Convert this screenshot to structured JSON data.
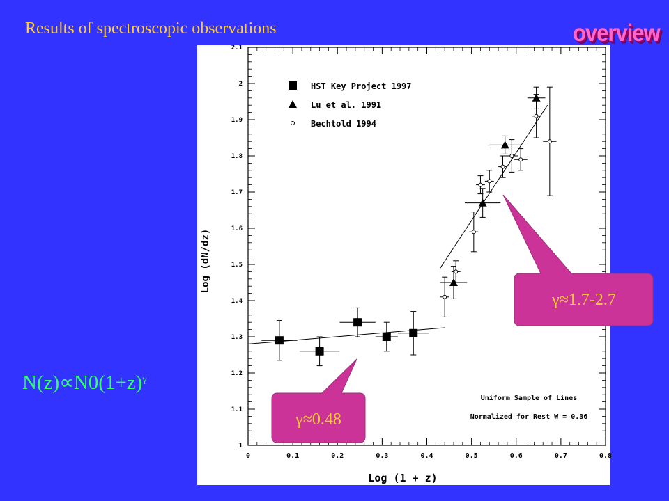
{
  "slide": {
    "title": "Results of spectroscopic observations",
    "overview_label": "overview",
    "formula": {
      "main": "N(z)∝N0(1+z)",
      "exponent": "γ"
    }
  },
  "callouts": {
    "low": "γ≈0.48",
    "high": "γ≈1.7-2.7"
  },
  "colors": {
    "background": "#3333ff",
    "title": "#ffcc33",
    "overview": "#ff66cc",
    "formula": "#33ff66",
    "callout_fill": "#cc3399",
    "callout_text": "#ffcc33"
  },
  "chart_data": {
    "type": "scatter",
    "xlabel": "Log (1 + z)",
    "ylabel": "Log (dN/dz)",
    "xlim": [
      0,
      0.8
    ],
    "ylim": [
      1,
      2.1
    ],
    "x_ticks": [
      0,
      0.1,
      0.2,
      0.3,
      0.4,
      0.5,
      0.6,
      0.7,
      0.8
    ],
    "x_tick_labels": [
      "0",
      "0.1",
      "0.2",
      "0.3",
      "0.4",
      "0.5",
      "0.6",
      "0.7",
      "0.8"
    ],
    "y_ticks": [
      1,
      1.1,
      1.2,
      1.3,
      1.4,
      1.5,
      1.6,
      1.7,
      1.8,
      1.9,
      2,
      2.1
    ],
    "y_tick_labels": [
      "1",
      "1.1",
      "1.2",
      "1.3",
      "1.4",
      "1.5",
      "1.6",
      "1.7",
      "1.8",
      "1.9",
      "2",
      "2.1"
    ],
    "legend_position": "top-left",
    "annotations": [
      "Uniform Sample of Lines",
      "Normalized for Rest W = 0.36"
    ],
    "series": [
      {
        "name": "HST Key Project 1997",
        "marker": "square",
        "points": [
          {
            "x": 0.07,
            "y": 1.29,
            "xerr": 0.04,
            "yerr": 0.055
          },
          {
            "x": 0.16,
            "y": 1.26,
            "xerr": 0.045,
            "yerr": 0.04
          },
          {
            "x": 0.245,
            "y": 1.34,
            "xerr": 0.04,
            "yerr": 0.04
          },
          {
            "x": 0.31,
            "y": 1.3,
            "xerr": 0.025,
            "yerr": 0.04
          },
          {
            "x": 0.37,
            "y": 1.31,
            "xerr": 0.035,
            "yerr": 0.06
          }
        ]
      },
      {
        "name": "Lu et al. 1991",
        "marker": "triangle",
        "points": [
          {
            "x": 0.46,
            "y": 1.45,
            "xerr": 0.03,
            "yerr": 0.045
          },
          {
            "x": 0.525,
            "y": 1.67,
            "xerr": 0.04,
            "yerr": 0.04
          },
          {
            "x": 0.575,
            "y": 1.83,
            "xerr": 0.035,
            "yerr": 0.025
          },
          {
            "x": 0.645,
            "y": 1.96,
            "xerr": 0.02,
            "yerr": 0.03
          }
        ]
      },
      {
        "name": "Bechtold 1994",
        "marker": "circle",
        "points": [
          {
            "x": 0.44,
            "y": 1.41,
            "xerr": 0.01,
            "yerr": 0.055
          },
          {
            "x": 0.465,
            "y": 1.48,
            "xerr": 0.01,
            "yerr": 0.03
          },
          {
            "x": 0.505,
            "y": 1.59,
            "xerr": 0.01,
            "yerr": 0.055
          },
          {
            "x": 0.52,
            "y": 1.72,
            "xerr": 0.01,
            "yerr": 0.025
          },
          {
            "x": 0.54,
            "y": 1.73,
            "xerr": 0.01,
            "yerr": 0.03
          },
          {
            "x": 0.57,
            "y": 1.77,
            "xerr": 0.01,
            "yerr": 0.03
          },
          {
            "x": 0.59,
            "y": 1.8,
            "xerr": 0.015,
            "yerr": 0.045
          },
          {
            "x": 0.61,
            "y": 1.79,
            "xerr": 0.015,
            "yerr": 0.03
          },
          {
            "x": 0.645,
            "y": 1.91,
            "xerr": 0.01,
            "yerr": 0.06
          },
          {
            "x": 0.675,
            "y": 1.84,
            "xerr": 0.015,
            "yerr": 0.15
          }
        ]
      }
    ],
    "fit_lines": [
      {
        "x": [
          0,
          0.44
        ],
        "y": [
          1.28,
          1.325
        ]
      },
      {
        "x": [
          0.43,
          0.67
        ],
        "y": [
          1.49,
          1.94
        ]
      }
    ]
  }
}
